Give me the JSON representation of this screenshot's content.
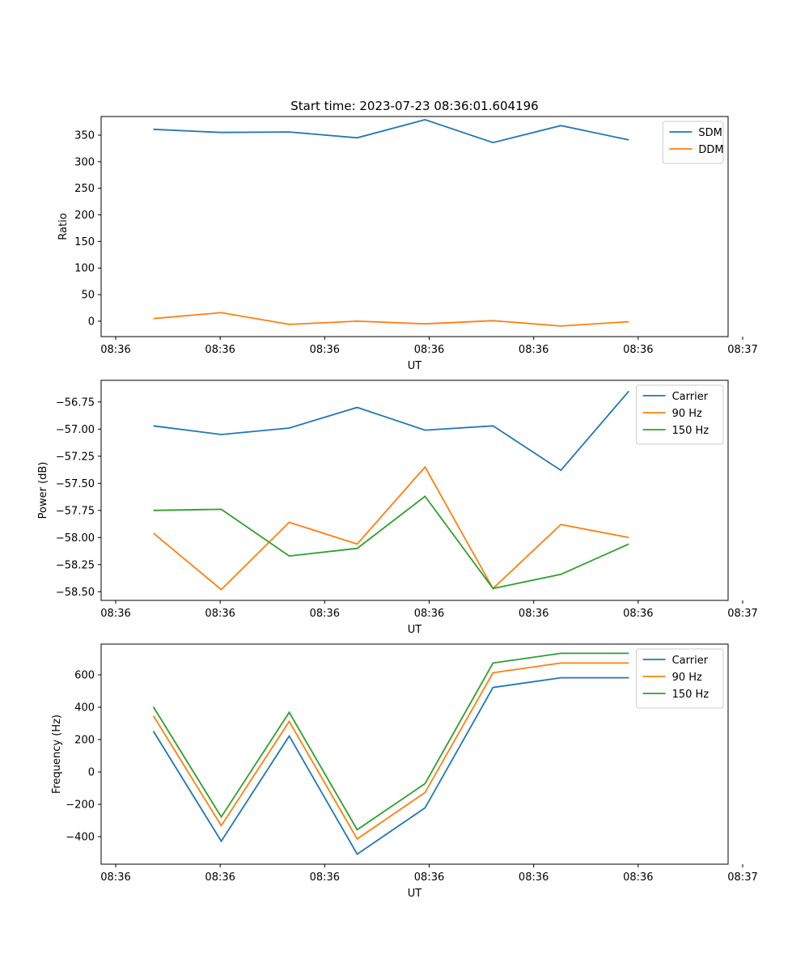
{
  "title": "Start time: 2023-07-23 08:36:01.604196",
  "chart_data": [
    {
      "type": "line",
      "xlabel": "UT",
      "ylabel": "Ratio",
      "x_tick_labels": [
        "08:36",
        "08:36",
        "08:36",
        "08:36",
        "08:36",
        "08:36",
        "08:36",
        "08:37"
      ],
      "y_ticks": [
        0,
        50,
        100,
        150,
        200,
        250,
        300,
        350
      ],
      "y_tick_labels": [
        "0",
        "50",
        "100",
        "150",
        "200",
        "250",
        "300",
        "350"
      ],
      "xlim": [
        0,
        12
      ],
      "ylim": [
        -29,
        385
      ],
      "x": [
        1,
        2.3,
        3.6,
        4.9,
        6.2,
        7.5,
        8.8,
        10.1
      ],
      "legend_position": "upper-right",
      "series": [
        {
          "name": "SDM",
          "color": "#1f77b4",
          "values": [
            361,
            355,
            356,
            345,
            379,
            336,
            368,
            341
          ]
        },
        {
          "name": "DDM",
          "color": "#ff7f0e",
          "values": [
            5,
            16,
            -6,
            0,
            -5,
            1,
            -9,
            -1
          ]
        }
      ]
    },
    {
      "type": "line",
      "xlabel": "UT",
      "ylabel": "Power (dB)",
      "x_tick_labels": [
        "08:36",
        "08:36",
        "08:36",
        "08:36",
        "08:36",
        "08:36",
        "08:36",
        "08:37"
      ],
      "y_ticks": [
        -58.5,
        -58.25,
        -58.0,
        -57.75,
        -57.5,
        -57.25,
        -57.0,
        -56.75
      ],
      "y_tick_labels": [
        "−58.50",
        "−58.25",
        "−58.00",
        "−57.75",
        "−57.50",
        "−57.25",
        "−57.00",
        "−56.75"
      ],
      "xlim": [
        0,
        12
      ],
      "ylim": [
        -58.58,
        -56.55
      ],
      "x": [
        1,
        2.3,
        3.6,
        4.9,
        6.2,
        7.5,
        8.8,
        10.1
      ],
      "legend_position": "upper-right",
      "series": [
        {
          "name": "Carrier",
          "color": "#1f77b4",
          "values": [
            -56.97,
            -57.05,
            -56.99,
            -56.8,
            -57.01,
            -56.97,
            -57.38,
            -56.65
          ]
        },
        {
          "name": "90 Hz",
          "color": "#ff7f0e",
          "values": [
            -57.96,
            -58.48,
            -57.86,
            -58.06,
            -57.35,
            -58.47,
            -57.88,
            -58.0
          ]
        },
        {
          "name": "150 Hz",
          "color": "#2ca02c",
          "values": [
            -57.75,
            -57.74,
            -58.17,
            -58.1,
            -57.62,
            -58.47,
            -58.34,
            -58.06
          ]
        }
      ]
    },
    {
      "type": "line",
      "xlabel": "UT",
      "ylabel": "Frequency (Hz)",
      "x_tick_labels": [
        "08:36",
        "08:36",
        "08:36",
        "08:36",
        "08:36",
        "08:36",
        "08:36",
        "08:37"
      ],
      "y_ticks": [
        -400,
        -200,
        0,
        200,
        400,
        600
      ],
      "y_tick_labels": [
        "−400",
        "−200",
        "0",
        "200",
        "400",
        "600"
      ],
      "xlim": [
        0,
        12
      ],
      "ylim": [
        -570,
        790
      ],
      "x": [
        1,
        2.3,
        3.6,
        4.9,
        6.2,
        7.5,
        8.8,
        10.1
      ],
      "legend_position": "upper-right",
      "series": [
        {
          "name": "Carrier",
          "color": "#1f77b4",
          "values": [
            252,
            -428,
            222,
            -508,
            -222,
            522,
            582,
            582
          ]
        },
        {
          "name": "90 Hz",
          "color": "#ff7f0e",
          "values": [
            347,
            -332,
            312,
            -414,
            -127,
            613,
            673,
            673
          ]
        },
        {
          "name": "150 Hz",
          "color": "#2ca02c",
          "values": [
            402,
            -278,
            368,
            -357,
            -72,
            673,
            733,
            733
          ]
        }
      ]
    }
  ]
}
